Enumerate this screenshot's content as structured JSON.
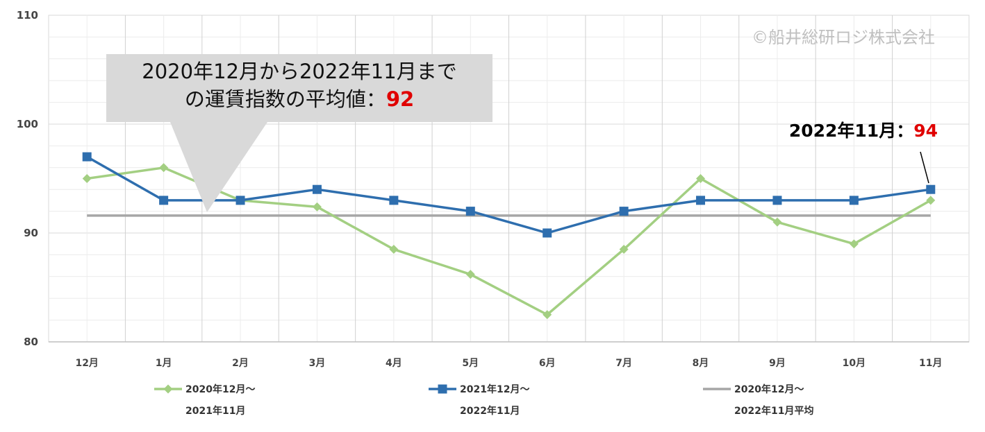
{
  "chart_data": {
    "type": "line",
    "categories": [
      "12月",
      "1月",
      "2月",
      "3月",
      "4月",
      "5月",
      "6月",
      "7月",
      "8月",
      "9月",
      "10月",
      "11月"
    ],
    "ylim": [
      80,
      110
    ],
    "yticks": [
      "80",
      "90",
      "100",
      "110"
    ],
    "grid": true,
    "legend_position": "bottom",
    "series": [
      {
        "name": "2020年12月～2021年11月",
        "name_line1": "2020年12月～",
        "name_line2": "2021年11月",
        "color": "#a3cf82",
        "marker": "diamond",
        "values": [
          95.0,
          96.0,
          93.0,
          92.4,
          88.5,
          86.2,
          82.5,
          88.5,
          95.0,
          91.0,
          89.0,
          93.0
        ]
      },
      {
        "name": "2021年12月～2022年11月",
        "name_line1": "2021年12月～",
        "name_line2": "2022年11月",
        "color": "#2e6eae",
        "marker": "square",
        "values": [
          97,
          93,
          93,
          94,
          93,
          92,
          90,
          92,
          93,
          93,
          93,
          94
        ]
      },
      {
        "name": "2020年12月～2022年11月平均",
        "name_line1": "2020年12月～",
        "name_line2": "2022年11月平均",
        "color": "#a6a6a6",
        "marker": "none",
        "values": [
          91.6,
          91.6,
          91.6,
          91.6,
          91.6,
          91.6,
          91.6,
          91.6,
          91.6,
          91.6,
          91.6,
          91.6
        ]
      }
    ],
    "annotations": {
      "callout_line1": "2020年12月から2022年11月まで",
      "callout_line2_prefix": "の運賃指数の平均値：",
      "callout_value": "92",
      "last_point_label": "2022年11月：",
      "last_point_value": "94"
    }
  },
  "watermark": "©船井総研ロジ株式会社",
  "colors": {
    "highlight": "#e00000",
    "grid": "#d9d9d9",
    "callout_bg": "#d9d9d9"
  }
}
